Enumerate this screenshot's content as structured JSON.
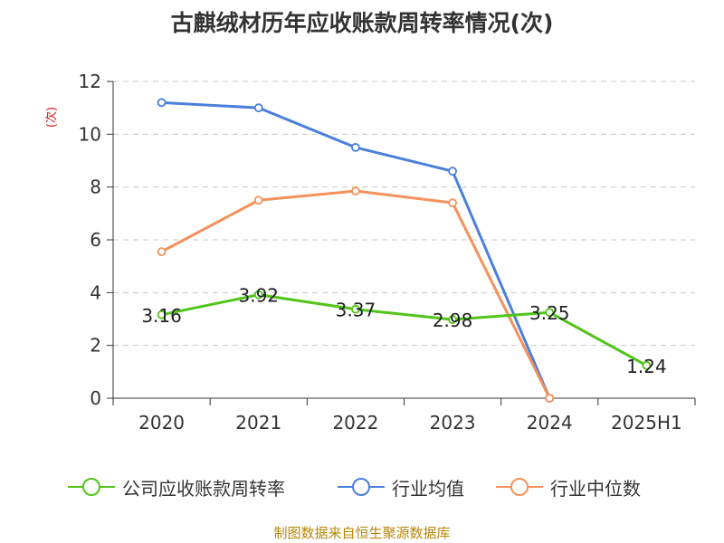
{
  "chart_data": {
    "type": "line",
    "title": "古麒绒材历年应收账款周转率情况(次)",
    "ylabel": "(次)",
    "categories": [
      "2020",
      "2021",
      "2022",
      "2023",
      "2024",
      "2025H1"
    ],
    "ylim": [
      0,
      12
    ],
    "yticks": [
      0,
      2,
      4,
      6,
      8,
      10,
      12
    ],
    "grid": true,
    "legend_position": "bottom",
    "series": [
      {
        "name": "公司应收账款周转率",
        "color": "#52c41a",
        "values": [
          3.16,
          3.92,
          3.37,
          2.98,
          3.25,
          1.24
        ],
        "labels": [
          "3.16",
          "3.92",
          "3.37",
          "2.98",
          "3.25",
          "1.24"
        ]
      },
      {
        "name": "行业均值",
        "color": "#4a7fdb",
        "values": [
          11.2,
          11.0,
          9.5,
          8.6,
          0,
          null
        ]
      },
      {
        "name": "行业中位数",
        "color": "#f5915a",
        "values": [
          5.55,
          7.5,
          7.85,
          7.4,
          0,
          null
        ]
      }
    ]
  },
  "source": "制图数据来自恒生聚源数据库"
}
